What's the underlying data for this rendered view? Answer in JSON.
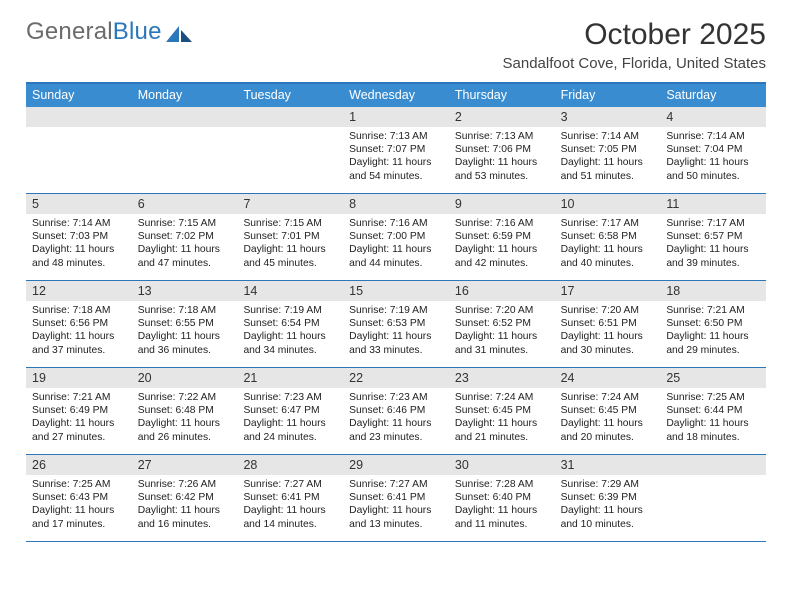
{
  "brand": {
    "name_gray": "General",
    "name_blue": "Blue"
  },
  "title": "October 2025",
  "location": "Sandalfoot Cove, Florida, United States",
  "colors": {
    "header_bg": "#3a8cd0",
    "accent": "#2c77ba",
    "daynum_bg": "#e6e6e6",
    "text": "#222222",
    "background": "#ffffff"
  },
  "typography": {
    "title_fontsize": 30,
    "location_fontsize": 15,
    "dow_fontsize": 12.5,
    "body_fontsize": 10.3
  },
  "labels": {
    "sunrise": "Sunrise:",
    "sunset": "Sunset:",
    "daylight_prefix": "Daylight:",
    "hours_word": "hours",
    "and_word": "and",
    "minutes_word": "minutes."
  },
  "days_of_week": [
    "Sunday",
    "Monday",
    "Tuesday",
    "Wednesday",
    "Thursday",
    "Friday",
    "Saturday"
  ],
  "weeks": [
    [
      {
        "n": null
      },
      {
        "n": null
      },
      {
        "n": null
      },
      {
        "n": 1,
        "sunrise": "7:13 AM",
        "sunset": "7:07 PM",
        "day_h": 11,
        "day_m": 54
      },
      {
        "n": 2,
        "sunrise": "7:13 AM",
        "sunset": "7:06 PM",
        "day_h": 11,
        "day_m": 53
      },
      {
        "n": 3,
        "sunrise": "7:14 AM",
        "sunset": "7:05 PM",
        "day_h": 11,
        "day_m": 51
      },
      {
        "n": 4,
        "sunrise": "7:14 AM",
        "sunset": "7:04 PM",
        "day_h": 11,
        "day_m": 50
      }
    ],
    [
      {
        "n": 5,
        "sunrise": "7:14 AM",
        "sunset": "7:03 PM",
        "day_h": 11,
        "day_m": 48
      },
      {
        "n": 6,
        "sunrise": "7:15 AM",
        "sunset": "7:02 PM",
        "day_h": 11,
        "day_m": 47
      },
      {
        "n": 7,
        "sunrise": "7:15 AM",
        "sunset": "7:01 PM",
        "day_h": 11,
        "day_m": 45
      },
      {
        "n": 8,
        "sunrise": "7:16 AM",
        "sunset": "7:00 PM",
        "day_h": 11,
        "day_m": 44
      },
      {
        "n": 9,
        "sunrise": "7:16 AM",
        "sunset": "6:59 PM",
        "day_h": 11,
        "day_m": 42
      },
      {
        "n": 10,
        "sunrise": "7:17 AM",
        "sunset": "6:58 PM",
        "day_h": 11,
        "day_m": 40
      },
      {
        "n": 11,
        "sunrise": "7:17 AM",
        "sunset": "6:57 PM",
        "day_h": 11,
        "day_m": 39
      }
    ],
    [
      {
        "n": 12,
        "sunrise": "7:18 AM",
        "sunset": "6:56 PM",
        "day_h": 11,
        "day_m": 37
      },
      {
        "n": 13,
        "sunrise": "7:18 AM",
        "sunset": "6:55 PM",
        "day_h": 11,
        "day_m": 36
      },
      {
        "n": 14,
        "sunrise": "7:19 AM",
        "sunset": "6:54 PM",
        "day_h": 11,
        "day_m": 34
      },
      {
        "n": 15,
        "sunrise": "7:19 AM",
        "sunset": "6:53 PM",
        "day_h": 11,
        "day_m": 33
      },
      {
        "n": 16,
        "sunrise": "7:20 AM",
        "sunset": "6:52 PM",
        "day_h": 11,
        "day_m": 31
      },
      {
        "n": 17,
        "sunrise": "7:20 AM",
        "sunset": "6:51 PM",
        "day_h": 11,
        "day_m": 30
      },
      {
        "n": 18,
        "sunrise": "7:21 AM",
        "sunset": "6:50 PM",
        "day_h": 11,
        "day_m": 29
      }
    ],
    [
      {
        "n": 19,
        "sunrise": "7:21 AM",
        "sunset": "6:49 PM",
        "day_h": 11,
        "day_m": 27
      },
      {
        "n": 20,
        "sunrise": "7:22 AM",
        "sunset": "6:48 PM",
        "day_h": 11,
        "day_m": 26
      },
      {
        "n": 21,
        "sunrise": "7:23 AM",
        "sunset": "6:47 PM",
        "day_h": 11,
        "day_m": 24
      },
      {
        "n": 22,
        "sunrise": "7:23 AM",
        "sunset": "6:46 PM",
        "day_h": 11,
        "day_m": 23
      },
      {
        "n": 23,
        "sunrise": "7:24 AM",
        "sunset": "6:45 PM",
        "day_h": 11,
        "day_m": 21
      },
      {
        "n": 24,
        "sunrise": "7:24 AM",
        "sunset": "6:45 PM",
        "day_h": 11,
        "day_m": 20
      },
      {
        "n": 25,
        "sunrise": "7:25 AM",
        "sunset": "6:44 PM",
        "day_h": 11,
        "day_m": 18
      }
    ],
    [
      {
        "n": 26,
        "sunrise": "7:25 AM",
        "sunset": "6:43 PM",
        "day_h": 11,
        "day_m": 17
      },
      {
        "n": 27,
        "sunrise": "7:26 AM",
        "sunset": "6:42 PM",
        "day_h": 11,
        "day_m": 16
      },
      {
        "n": 28,
        "sunrise": "7:27 AM",
        "sunset": "6:41 PM",
        "day_h": 11,
        "day_m": 14
      },
      {
        "n": 29,
        "sunrise": "7:27 AM",
        "sunset": "6:41 PM",
        "day_h": 11,
        "day_m": 13
      },
      {
        "n": 30,
        "sunrise": "7:28 AM",
        "sunset": "6:40 PM",
        "day_h": 11,
        "day_m": 11
      },
      {
        "n": 31,
        "sunrise": "7:29 AM",
        "sunset": "6:39 PM",
        "day_h": 11,
        "day_m": 10
      },
      {
        "n": null
      }
    ]
  ]
}
